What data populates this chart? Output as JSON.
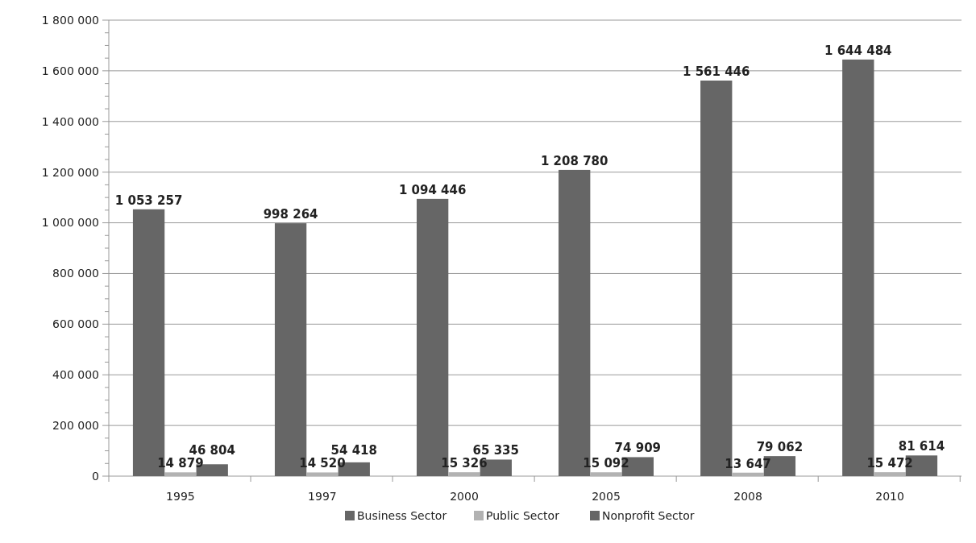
{
  "chart_data": {
    "type": "bar",
    "categories": [
      "1995",
      "1997",
      "2000",
      "2005",
      "2008",
      "2010"
    ],
    "series": [
      {
        "name": "Business Sector",
        "color": "#666666",
        "values": [
          1053257,
          998264,
          1094446,
          1208780,
          1561446,
          1644484
        ],
        "value_labels": [
          "1 053 257",
          "998 264",
          "1 094 446",
          "1 208 780",
          "1 561 446",
          "1 644 484"
        ]
      },
      {
        "name": "Public Sector",
        "color": "#b2b2b2",
        "values": [
          14879,
          14520,
          15326,
          15092,
          13647,
          15472
        ],
        "value_labels": [
          "14 879",
          "14 520",
          "15 326",
          "15 092",
          "13 647",
          "15 472"
        ]
      },
      {
        "name": "Nonprofit Sector",
        "color": "#666666",
        "values": [
          46804,
          54418,
          65335,
          74909,
          79062,
          81614
        ],
        "value_labels": [
          "46 804",
          "54 418",
          "65 335",
          "74 909",
          "79 062",
          "81 614"
        ]
      }
    ],
    "ylim": [
      0,
      1800000
    ],
    "yticks": [
      {
        "value": 0,
        "label": "0"
      },
      {
        "value": 50000,
        "label": null
      },
      {
        "value": 100000,
        "label": null
      },
      {
        "value": 150000,
        "label": null
      },
      {
        "value": 200000,
        "label": "200 000"
      },
      {
        "value": 250000,
        "label": null
      },
      {
        "value": 300000,
        "label": null
      },
      {
        "value": 350000,
        "label": null
      },
      {
        "value": 400000,
        "label": "400 000"
      },
      {
        "value": 450000,
        "label": null
      },
      {
        "value": 500000,
        "label": null
      },
      {
        "value": 550000,
        "label": null
      },
      {
        "value": 600000,
        "label": "600 000"
      },
      {
        "value": 650000,
        "label": null
      },
      {
        "value": 700000,
        "label": null
      },
      {
        "value": 750000,
        "label": null
      },
      {
        "value": 800000,
        "label": "800 000"
      },
      {
        "value": 850000,
        "label": null
      },
      {
        "value": 900000,
        "label": null
      },
      {
        "value": 950000,
        "label": null
      },
      {
        "value": 1000000,
        "label": "1 000 000"
      },
      {
        "value": 1050000,
        "label": null
      },
      {
        "value": 1100000,
        "label": null
      },
      {
        "value": 1150000,
        "label": null
      },
      {
        "value": 1200000,
        "label": "1 200 000"
      },
      {
        "value": 1250000,
        "label": null
      },
      {
        "value": 1300000,
        "label": null
      },
      {
        "value": 1350000,
        "label": null
      },
      {
        "value": 1400000,
        "label": "1 400 000"
      },
      {
        "value": 1450000,
        "label": null
      },
      {
        "value": 1500000,
        "label": null
      },
      {
        "value": 1550000,
        "label": null
      },
      {
        "value": 1600000,
        "label": "1 600 000"
      },
      {
        "value": 1650000,
        "label": null
      },
      {
        "value": 1700000,
        "label": null
      },
      {
        "value": 1750000,
        "label": null
      },
      {
        "value": 1800000,
        "label": "1 800 000"
      }
    ],
    "grid": "y",
    "legend": "bottom"
  }
}
